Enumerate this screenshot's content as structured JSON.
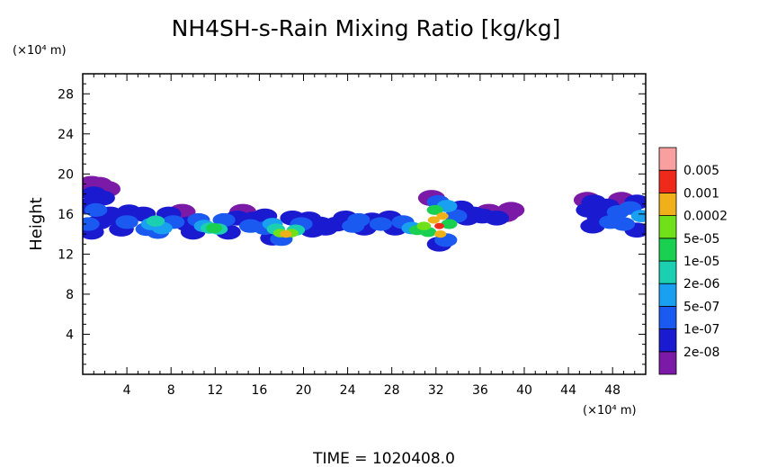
{
  "chart_data": {
    "type": "heatmap",
    "title": "NH4SH-s-Rain Mixing Ratio [kg/kg]",
    "xlabel": "",
    "ylabel": "Height",
    "x_unit": "(×10⁴ m)",
    "y_unit": "(×10⁴ m)",
    "xlim": [
      0,
      51
    ],
    "ylim": [
      0,
      30
    ],
    "x_ticks": [
      4,
      8,
      12,
      16,
      20,
      24,
      28,
      32,
      36,
      40,
      44,
      48
    ],
    "y_ticks": [
      4,
      8,
      12,
      16,
      20,
      24,
      28
    ],
    "x_tick_labels": [
      "4",
      "8",
      "12",
      "16",
      "20",
      "24",
      "28",
      "32",
      "36",
      "40",
      "44",
      "48"
    ],
    "y_tick_labels": [
      "4",
      "8",
      "12",
      "16",
      "20",
      "24",
      "28"
    ],
    "colorbar": {
      "levels": [
        "2e-08",
        "1e-07",
        "5e-07",
        "2e-06",
        "1e-05",
        "5e-05",
        "0.0002",
        "0.001",
        "0.005"
      ],
      "colors": [
        "#7a1aa6",
        "#1a1ad0",
        "#1a5af0",
        "#1aa0f0",
        "#1ad0b0",
        "#1ad050",
        "#70e01a",
        "#f0b01a",
        "#f02a1a",
        "#f8a0a0"
      ]
    },
    "cells": [
      {
        "x": 0.2,
        "y": 18.6,
        "level": 0
      },
      {
        "x": 0.8,
        "y": 19.0,
        "level": 0
      },
      {
        "x": 1.5,
        "y": 18.9,
        "level": 0
      },
      {
        "x": 2.2,
        "y": 18.5,
        "level": 0
      },
      {
        "x": 1.0,
        "y": 18.0,
        "level": 1
      },
      {
        "x": 1.8,
        "y": 17.6,
        "level": 1
      },
      {
        "x": 0.3,
        "y": 16.8,
        "level": 1
      },
      {
        "x": 1.2,
        "y": 16.4,
        "level": 2
      },
      {
        "x": 2.5,
        "y": 16.0,
        "level": 1
      },
      {
        "x": 0.5,
        "y": 15.0,
        "level": 2
      },
      {
        "x": 1.5,
        "y": 15.2,
        "level": 1
      },
      {
        "x": 0.8,
        "y": 14.2,
        "level": 1
      },
      {
        "x": 3.0,
        "y": 15.6,
        "level": 1
      },
      {
        "x": 4.0,
        "y": 15.2,
        "level": 2
      },
      {
        "x": 4.2,
        "y": 16.2,
        "level": 1
      },
      {
        "x": 3.5,
        "y": 14.5,
        "level": 1
      },
      {
        "x": 5.5,
        "y": 16.0,
        "level": 1
      },
      {
        "x": 6.2,
        "y": 15.0,
        "level": 3
      },
      {
        "x": 6.6,
        "y": 15.3,
        "level": 4
      },
      {
        "x": 7.2,
        "y": 14.6,
        "level": 3
      },
      {
        "x": 6.8,
        "y": 14.2,
        "level": 2
      },
      {
        "x": 5.8,
        "y": 14.5,
        "level": 2
      },
      {
        "x": 7.8,
        "y": 16.0,
        "level": 1
      },
      {
        "x": 8.2,
        "y": 15.2,
        "level": 2
      },
      {
        "x": 9.0,
        "y": 16.2,
        "level": 0
      },
      {
        "x": 9.5,
        "y": 15.0,
        "level": 1
      },
      {
        "x": 10.5,
        "y": 15.4,
        "level": 2
      },
      {
        "x": 11.0,
        "y": 14.8,
        "level": 3
      },
      {
        "x": 11.5,
        "y": 14.6,
        "level": 4
      },
      {
        "x": 11.9,
        "y": 14.6,
        "level": 5
      },
      {
        "x": 12.3,
        "y": 14.5,
        "level": 4
      },
      {
        "x": 10.0,
        "y": 14.2,
        "level": 1
      },
      {
        "x": 12.8,
        "y": 15.4,
        "level": 2
      },
      {
        "x": 13.2,
        "y": 14.2,
        "level": 1
      },
      {
        "x": 14.0,
        "y": 15.6,
        "level": 1
      },
      {
        "x": 14.5,
        "y": 16.2,
        "level": 0
      },
      {
        "x": 15.5,
        "y": 15.5,
        "level": 1
      },
      {
        "x": 15.2,
        "y": 14.8,
        "level": 2
      },
      {
        "x": 16.5,
        "y": 15.8,
        "level": 1
      },
      {
        "x": 16.5,
        "y": 14.6,
        "level": 2
      },
      {
        "x": 17.2,
        "y": 15.0,
        "level": 3
      },
      {
        "x": 17.5,
        "y": 14.5,
        "level": 4
      },
      {
        "x": 17.9,
        "y": 14.1,
        "level": 6
      },
      {
        "x": 18.4,
        "y": 14.0,
        "level": 7
      },
      {
        "x": 18.9,
        "y": 14.1,
        "level": 6
      },
      {
        "x": 19.3,
        "y": 14.4,
        "level": 4
      },
      {
        "x": 18.0,
        "y": 13.5,
        "level": 2
      },
      {
        "x": 17.2,
        "y": 13.6,
        "level": 1
      },
      {
        "x": 19.8,
        "y": 15.0,
        "level": 2
      },
      {
        "x": 20.5,
        "y": 15.5,
        "level": 1
      },
      {
        "x": 20.8,
        "y": 14.4,
        "level": 1
      },
      {
        "x": 19.0,
        "y": 15.6,
        "level": 1
      },
      {
        "x": 21.5,
        "y": 15.0,
        "level": 1
      },
      {
        "x": 22.0,
        "y": 14.6,
        "level": 1
      },
      {
        "x": 23.0,
        "y": 15.0,
        "level": 1
      },
      {
        "x": 23.8,
        "y": 15.6,
        "level": 1
      },
      {
        "x": 24.5,
        "y": 14.8,
        "level": 2
      },
      {
        "x": 25.0,
        "y": 15.4,
        "level": 2
      },
      {
        "x": 25.5,
        "y": 14.6,
        "level": 1
      },
      {
        "x": 26.2,
        "y": 15.4,
        "level": 1
      },
      {
        "x": 27.0,
        "y": 15.0,
        "level": 2
      },
      {
        "x": 27.8,
        "y": 15.6,
        "level": 1
      },
      {
        "x": 28.3,
        "y": 14.6,
        "level": 1
      },
      {
        "x": 29.0,
        "y": 15.2,
        "level": 2
      },
      {
        "x": 29.8,
        "y": 14.6,
        "level": 3
      },
      {
        "x": 30.3,
        "y": 14.4,
        "level": 5
      },
      {
        "x": 30.9,
        "y": 14.8,
        "level": 6
      },
      {
        "x": 31.3,
        "y": 14.2,
        "level": 5
      },
      {
        "x": 31.8,
        "y": 15.4,
        "level": 7
      },
      {
        "x": 32.3,
        "y": 14.8,
        "level": 8
      },
      {
        "x": 32.6,
        "y": 15.8,
        "level": 7
      },
      {
        "x": 32.4,
        "y": 14.0,
        "level": 7
      },
      {
        "x": 31.9,
        "y": 16.4,
        "level": 5
      },
      {
        "x": 32.2,
        "y": 17.2,
        "level": 2
      },
      {
        "x": 31.6,
        "y": 17.6,
        "level": 0
      },
      {
        "x": 33.0,
        "y": 16.8,
        "level": 3
      },
      {
        "x": 33.2,
        "y": 15.0,
        "level": 5
      },
      {
        "x": 32.9,
        "y": 13.4,
        "level": 2
      },
      {
        "x": 32.3,
        "y": 13.0,
        "level": 1
      },
      {
        "x": 33.8,
        "y": 15.8,
        "level": 2
      },
      {
        "x": 34.3,
        "y": 16.6,
        "level": 1
      },
      {
        "x": 34.8,
        "y": 15.6,
        "level": 1
      },
      {
        "x": 35.4,
        "y": 16.0,
        "level": 1
      },
      {
        "x": 36.2,
        "y": 15.8,
        "level": 1
      },
      {
        "x": 36.8,
        "y": 16.2,
        "level": 0
      },
      {
        "x": 37.5,
        "y": 15.6,
        "level": 1
      },
      {
        "x": 38.3,
        "y": 16.0,
        "level": 0
      },
      {
        "x": 38.8,
        "y": 16.4,
        "level": 0
      },
      {
        "x": 45.7,
        "y": 17.4,
        "level": 0
      },
      {
        "x": 46.3,
        "y": 17.2,
        "level": 1
      },
      {
        "x": 45.8,
        "y": 16.4,
        "level": 1
      },
      {
        "x": 46.8,
        "y": 15.6,
        "level": 1
      },
      {
        "x": 47.5,
        "y": 16.8,
        "level": 1
      },
      {
        "x": 47.8,
        "y": 15.2,
        "level": 2
      },
      {
        "x": 48.5,
        "y": 16.2,
        "level": 2
      },
      {
        "x": 49.0,
        "y": 15.0,
        "level": 2
      },
      {
        "x": 49.6,
        "y": 16.6,
        "level": 2
      },
      {
        "x": 50.2,
        "y": 17.2,
        "level": 1
      },
      {
        "x": 50.6,
        "y": 15.8,
        "level": 3
      },
      {
        "x": 50.2,
        "y": 14.4,
        "level": 1
      },
      {
        "x": 48.8,
        "y": 17.4,
        "level": 0
      },
      {
        "x": 46.2,
        "y": 14.8,
        "level": 1
      }
    ]
  },
  "footer": {
    "time_label": "TIME = 1020408.0"
  }
}
